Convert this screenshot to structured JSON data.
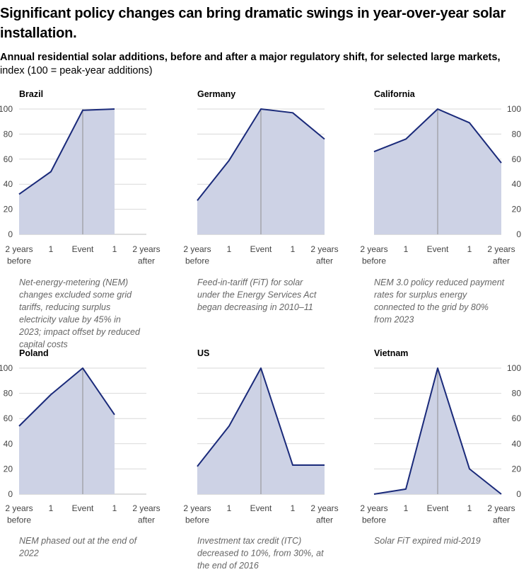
{
  "headline": "Significant policy changes can bring dramatic swings in year-over-year solar installation.",
  "subtitle": {
    "bold": "Annual residential solar additions, before and after a major regulatory shift, for selected large markets,",
    "normal": " index (100 = peak-year additions)"
  },
  "chart_data": [
    {
      "type": "area",
      "title": "Brazil",
      "categories": [
        "2 years before",
        "1",
        "Event",
        "1",
        "2 years after"
      ],
      "values": [
        32,
        50,
        99,
        100,
        null
      ],
      "ylim": [
        0,
        100
      ],
      "yticks": [
        0,
        20,
        40,
        60,
        80,
        100
      ],
      "yaxis_side": "left",
      "note": "Net-energy-metering (NEM) changes excluded some grid tariffs, reducing surplus electricity value by 45% in 2023; impact offset by reduced capital costs"
    },
    {
      "type": "area",
      "title": "Germany",
      "categories": [
        "2 years before",
        "1",
        "Event",
        "1",
        "2 years after"
      ],
      "values": [
        27,
        59,
        100,
        97,
        76
      ],
      "ylim": [
        0,
        100
      ],
      "yticks": [
        0,
        20,
        40,
        60,
        80,
        100
      ],
      "yaxis_side": "none",
      "note": "Feed-in-tariff (FiT) for solar under the Energy Services Act began decreasing in 2010–11"
    },
    {
      "type": "area",
      "title": "California",
      "categories": [
        "2 years before",
        "1",
        "Event",
        "1",
        "2 years after"
      ],
      "values": [
        66,
        76,
        100,
        89,
        57
      ],
      "ylim": [
        0,
        100
      ],
      "yticks": [
        0,
        20,
        40,
        60,
        80,
        100
      ],
      "yaxis_side": "right",
      "note": "NEM 3.0 policy reduced payment rates for surplus energy connected to the grid by 80% from 2023"
    },
    {
      "type": "area",
      "title": "Poland",
      "categories": [
        "2 years before",
        "1",
        "Event",
        "1",
        "2 years after"
      ],
      "values": [
        54,
        79,
        100,
        63,
        null
      ],
      "ylim": [
        0,
        100
      ],
      "yticks": [
        0,
        20,
        40,
        60,
        80,
        100
      ],
      "yaxis_side": "left",
      "note": "NEM phased out at the end of 2022"
    },
    {
      "type": "area",
      "title": "US",
      "categories": [
        "2 years before",
        "1",
        "Event",
        "1",
        "2 years after"
      ],
      "values": [
        22,
        54,
        100,
        23,
        23
      ],
      "ylim": [
        0,
        100
      ],
      "yticks": [
        0,
        20,
        40,
        60,
        80,
        100
      ],
      "yaxis_side": "none",
      "note": "Investment tax credit (ITC) decreased to 10%, from 30%, at the end of 2016"
    },
    {
      "type": "area",
      "title": "Vietnam",
      "categories": [
        "2 years before",
        "1",
        "Event",
        "1",
        "2 years after"
      ],
      "values": [
        0,
        4,
        100,
        20,
        0
      ],
      "ylim": [
        0,
        100
      ],
      "yticks": [
        0,
        20,
        40,
        60,
        80,
        100
      ],
      "yaxis_side": "right",
      "note": "Solar FiT expired mid-2019"
    }
  ],
  "colors": {
    "line": "#1a2a7a",
    "area": "#cdd2e5"
  }
}
